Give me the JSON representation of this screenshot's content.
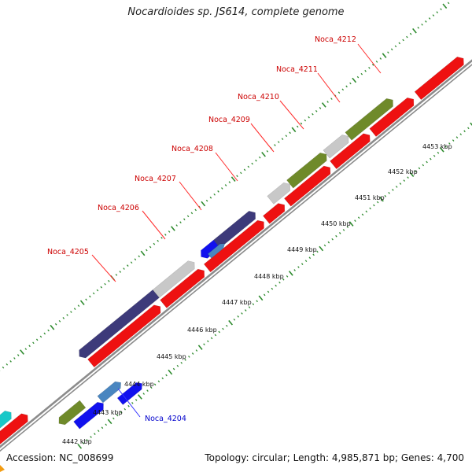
{
  "title": "Nocardioides sp. JS614, complete genome",
  "footer": {
    "accession": "Accession: NC_008699",
    "summary": "Topology: circular; Length: 4,985,871 bp; Genes: 4,700"
  },
  "colors": {
    "backbone": "#8c8c8c",
    "ticks": "#2e8b2e",
    "label_red": "#cc0000",
    "label_blue": "#0000cc",
    "leader_red": "#ff2a2a",
    "leader_blue": "#3333ff",
    "gene_red": "#ee1111",
    "gene_navy": "#3d3a7a",
    "gene_grey": "#c8c8c8",
    "gene_olive": "#6f8a2a",
    "gene_blue": "#1111ee",
    "gene_steel": "#4a86c0",
    "gene_cyan": "#19c8c8"
  },
  "scale_ticks": [
    "4442 kbp",
    "4443 kbp",
    "4444 kbp",
    "4445 kbp",
    "4446 kbp",
    "4447 kbp",
    "4448 kbp",
    "4449 kbp",
    "4450 kbp",
    "4451 kbp",
    "4452 kbp",
    "4453 kbp"
  ],
  "gene_labels": [
    {
      "text": "Noca_4204",
      "color": "blue"
    },
    {
      "text": "Noca_4205",
      "color": "red"
    },
    {
      "text": "Noca_4206",
      "color": "red"
    },
    {
      "text": "Noca_4207",
      "color": "red"
    },
    {
      "text": "Noca_4208",
      "color": "red"
    },
    {
      "text": "Noca_4209",
      "color": "red"
    },
    {
      "text": "Noca_4210",
      "color": "red"
    },
    {
      "text": "Noca_4211",
      "color": "red"
    },
    {
      "text": "Noca_4212",
      "color": "red"
    }
  ]
}
